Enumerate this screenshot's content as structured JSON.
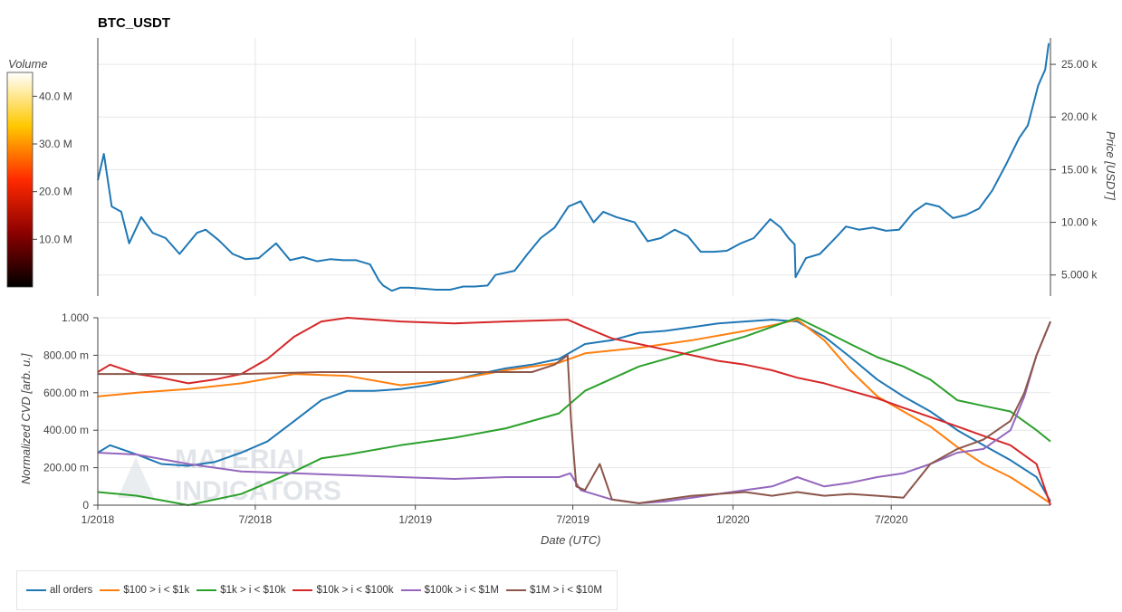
{
  "chart_data": [
    {
      "type": "line",
      "title": "BTC_USDT",
      "ylabel": "Price [USDT]",
      "ylim": [
        3000,
        27500
      ],
      "y_ticks": [
        5000,
        10000,
        15000,
        20000,
        25000
      ],
      "y_tick_labels": [
        "5.000 k",
        "10.00 k",
        "15.00 k",
        "20.00 k",
        "25.00 k"
      ],
      "x_ticks": [
        "2018-01",
        "2018-07",
        "2019-01",
        "2019-07",
        "2020-01",
        "2020-07"
      ],
      "colorbar": {
        "label": "Volume",
        "tick_labels": [
          "10.0 M",
          "20.0 M",
          "30.0 M",
          "40.0 M"
        ],
        "ticks": [
          10000000,
          20000000,
          30000000,
          40000000
        ],
        "range": [
          0,
          45000000
        ]
      },
      "grid": true,
      "series": [
        {
          "color": "#1f77b4",
          "x": [
            "2018-01-01",
            "2018-01-08",
            "2018-01-17",
            "2018-01-28",
            "2018-02-06",
            "2018-02-20",
            "2018-03-05",
            "2018-03-20",
            "2018-04-05",
            "2018-04-25",
            "2018-05-05",
            "2018-05-20",
            "2018-06-05",
            "2018-06-20",
            "2018-07-05",
            "2018-07-25",
            "2018-08-10",
            "2018-08-25",
            "2018-09-10",
            "2018-09-25",
            "2018-10-10",
            "2018-10-25",
            "2018-11-10",
            "2018-11-20",
            "2018-11-25",
            "2018-12-05",
            "2018-12-15",
            "2018-12-25",
            "2019-01-10",
            "2019-01-25",
            "2019-02-10",
            "2019-02-25",
            "2019-03-10",
            "2019-03-25",
            "2019-04-03",
            "2019-04-25",
            "2019-05-10",
            "2019-05-25",
            "2019-06-10",
            "2019-06-26",
            "2019-07-10",
            "2019-07-25",
            "2019-08-05",
            "2019-08-20",
            "2019-09-10",
            "2019-09-25",
            "2019-10-10",
            "2019-10-26",
            "2019-11-10",
            "2019-11-25",
            "2019-12-10",
            "2019-12-25",
            "2020-01-10",
            "2020-01-25",
            "2020-02-13",
            "2020-02-25",
            "2020-03-05",
            "2020-03-12",
            "2020-03-13",
            "2020-03-25",
            "2020-04-10",
            "2020-04-30",
            "2020-05-10",
            "2020-05-25",
            "2020-06-10",
            "2020-06-25",
            "2020-07-10",
            "2020-07-27",
            "2020-08-10",
            "2020-08-25",
            "2020-09-10",
            "2020-09-25",
            "2020-10-10",
            "2020-10-25",
            "2020-11-10",
            "2020-11-25",
            "2020-12-05",
            "2020-12-17",
            "2020-12-25",
            "2020-12-29"
          ],
          "y": [
            14000,
            16500,
            11500,
            11000,
            8000,
            10500,
            9000,
            8500,
            7000,
            9000,
            9300,
            8300,
            7000,
            6500,
            6600,
            8000,
            6400,
            6700,
            6300,
            6500,
            6400,
            6400,
            6000,
            4500,
            4000,
            3500,
            3800,
            3800,
            3700,
            3600,
            3600,
            3900,
            3900,
            4000,
            5000,
            5400,
            7000,
            8500,
            9500,
            11500,
            12000,
            10000,
            11000,
            10500,
            10000,
            8200,
            8500,
            9300,
            8700,
            7200,
            7200,
            7300,
            8000,
            8500,
            10300,
            9500,
            8500,
            7900,
            4800,
            6600,
            7000,
            8700,
            9600,
            9300,
            9500,
            9200,
            9300,
            11000,
            11800,
            11500,
            10400,
            10700,
            11300,
            13000,
            15500,
            18000,
            19200,
            23000,
            24500,
            27000
          ]
        }
      ]
    },
    {
      "type": "line",
      "xlabel": "Date (UTC)",
      "ylabel": "Normalized CVD [arb. u.]",
      "ylim": [
        0,
        1
      ],
      "y_ticks": [
        0,
        0.2,
        0.4,
        0.6,
        0.8,
        1.0
      ],
      "y_tick_labels": [
        "0",
        "200.00 m",
        "400.00 m",
        "600.00 m",
        "800.00 m",
        "1.000"
      ],
      "x_ticks": [
        "2018-01",
        "2018-07",
        "2019-01",
        "2019-07",
        "2020-01",
        "2020-07"
      ],
      "x_tick_labels": [
        "1/2018",
        "7/2018",
        "1/2019",
        "7/2019",
        "1/2020",
        "7/2020"
      ],
      "grid": true,
      "series": [
        {
          "name": "all orders",
          "color": "#1f77b4",
          "x": [
            "2018-01-01",
            "2018-01-15",
            "2018-02-15",
            "2018-03-15",
            "2018-04-15",
            "2018-05-15",
            "2018-06-15",
            "2018-07-15",
            "2018-08-15",
            "2018-09-15",
            "2018-10-15",
            "2018-11-15",
            "2018-12-15",
            "2019-01-15",
            "2019-02-15",
            "2019-03-15",
            "2019-04-15",
            "2019-05-15",
            "2019-06-15",
            "2019-06-30",
            "2019-07-15",
            "2019-08-15",
            "2019-09-15",
            "2019-10-15",
            "2019-11-15",
            "2019-12-15",
            "2020-01-15",
            "2020-02-15",
            "2020-03-15",
            "2020-04-15",
            "2020-05-15",
            "2020-06-15",
            "2020-07-15",
            "2020-08-15",
            "2020-09-15",
            "2020-10-15",
            "2020-11-15",
            "2020-12-15",
            "2020-12-31"
          ],
          "y": [
            0.28,
            0.32,
            0.27,
            0.22,
            0.21,
            0.23,
            0.28,
            0.34,
            0.45,
            0.56,
            0.61,
            0.61,
            0.62,
            0.64,
            0.67,
            0.7,
            0.73,
            0.75,
            0.78,
            0.82,
            0.86,
            0.88,
            0.92,
            0.93,
            0.95,
            0.97,
            0.98,
            0.99,
            0.98,
            0.9,
            0.79,
            0.67,
            0.58,
            0.5,
            0.4,
            0.32,
            0.24,
            0.15,
            0.02
          ]
        },
        {
          "name": "$100 > i < $1k",
          "color": "#ff7f0e",
          "x": [
            "2018-01-01",
            "2018-02-15",
            "2018-04-15",
            "2018-06-15",
            "2018-08-15",
            "2018-10-15",
            "2018-12-15",
            "2019-02-15",
            "2019-04-15",
            "2019-06-15",
            "2019-07-15",
            "2019-09-15",
            "2019-11-15",
            "2020-01-15",
            "2020-02-15",
            "2020-03-15",
            "2020-04-15",
            "2020-05-15",
            "2020-06-15",
            "2020-07-15",
            "2020-08-15",
            "2020-09-15",
            "2020-10-15",
            "2020-11-15",
            "2020-12-15",
            "2020-12-31"
          ],
          "y": [
            0.58,
            0.6,
            0.62,
            0.65,
            0.7,
            0.69,
            0.64,
            0.67,
            0.72,
            0.76,
            0.81,
            0.84,
            0.88,
            0.93,
            0.96,
            0.99,
            0.88,
            0.72,
            0.58,
            0.5,
            0.42,
            0.31,
            0.22,
            0.15,
            0.06,
            0.01
          ]
        },
        {
          "name": "$1k > i < $10k",
          "color": "#2ca02c",
          "x": [
            "2018-01-01",
            "2018-02-15",
            "2018-04-15",
            "2018-06-15",
            "2018-08-15",
            "2018-09-15",
            "2018-10-15",
            "2018-12-15",
            "2019-02-15",
            "2019-04-15",
            "2019-06-15",
            "2019-07-15",
            "2019-09-15",
            "2019-11-15",
            "2020-01-15",
            "2020-03-15",
            "2020-04-15",
            "2020-05-15",
            "2020-06-15",
            "2020-07-15",
            "2020-08-15",
            "2020-09-15",
            "2020-10-15",
            "2020-11-15",
            "2020-12-15",
            "2020-12-31"
          ],
          "y": [
            0.07,
            0.05,
            0.0,
            0.06,
            0.18,
            0.25,
            0.27,
            0.32,
            0.36,
            0.41,
            0.49,
            0.61,
            0.74,
            0.82,
            0.9,
            1.0,
            0.93,
            0.86,
            0.79,
            0.74,
            0.67,
            0.56,
            0.53,
            0.5,
            0.4,
            0.34
          ]
        },
        {
          "name": "$10k > i < $100k",
          "color": "#d62728",
          "x": [
            "2018-01-01",
            "2018-01-15",
            "2018-02-15",
            "2018-03-15",
            "2018-04-15",
            "2018-05-15",
            "2018-06-15",
            "2018-07-15",
            "2018-08-15",
            "2018-09-15",
            "2018-10-15",
            "2018-11-15",
            "2018-12-15",
            "2019-02-15",
            "2019-04-15",
            "2019-06-25",
            "2019-07-15",
            "2019-08-15",
            "2019-09-15",
            "2019-10-15",
            "2019-11-15",
            "2019-12-15",
            "2020-01-15",
            "2020-02-15",
            "2020-03-15",
            "2020-04-15",
            "2020-05-15",
            "2020-06-15",
            "2020-07-15",
            "2020-08-15",
            "2020-09-15",
            "2020-10-15",
            "2020-11-15",
            "2020-12-15",
            "2020-12-31"
          ],
          "y": [
            0.71,
            0.75,
            0.7,
            0.68,
            0.65,
            0.67,
            0.7,
            0.78,
            0.9,
            0.98,
            1.0,
            0.99,
            0.98,
            0.97,
            0.98,
            0.99,
            0.95,
            0.89,
            0.86,
            0.83,
            0.8,
            0.77,
            0.75,
            0.72,
            0.68,
            0.65,
            0.61,
            0.57,
            0.52,
            0.47,
            0.42,
            0.37,
            0.32,
            0.22,
            0.0
          ]
        },
        {
          "name": "$100k > i < $1M",
          "color": "#9467bd",
          "x": [
            "2018-01-01",
            "2018-02-15",
            "2018-04-15",
            "2018-06-15",
            "2018-08-15",
            "2018-10-15",
            "2018-12-15",
            "2019-02-15",
            "2019-04-15",
            "2019-06-15",
            "2019-06-28",
            "2019-07-10",
            "2019-08-15",
            "2019-09-15",
            "2019-10-15",
            "2019-11-15",
            "2019-12-15",
            "2020-01-15",
            "2020-02-15",
            "2020-03-15",
            "2020-04-15",
            "2020-05-15",
            "2020-06-15",
            "2020-07-15",
            "2020-08-15",
            "2020-09-15",
            "2020-10-15",
            "2020-11-15",
            "2020-12-01",
            "2020-12-15",
            "2020-12-31"
          ],
          "y": [
            0.28,
            0.27,
            0.22,
            0.18,
            0.17,
            0.16,
            0.15,
            0.14,
            0.15,
            0.15,
            0.17,
            0.08,
            0.03,
            0.01,
            0.02,
            0.04,
            0.06,
            0.08,
            0.1,
            0.15,
            0.1,
            0.12,
            0.15,
            0.17,
            0.22,
            0.28,
            0.3,
            0.4,
            0.58,
            0.8,
            0.98
          ]
        },
        {
          "name": "$1M > i < $10M",
          "color": "#8c564b",
          "x": [
            "2018-01-01",
            "2018-03-15",
            "2018-06-15",
            "2018-09-15",
            "2018-12-15",
            "2019-03-15",
            "2019-05-15",
            "2019-06-10",
            "2019-06-25",
            "2019-06-29",
            "2019-07-05",
            "2019-07-15",
            "2019-08-01",
            "2019-08-15",
            "2019-09-15",
            "2019-10-15",
            "2019-11-15",
            "2019-12-15",
            "2020-01-15",
            "2020-02-15",
            "2020-03-15",
            "2020-04-15",
            "2020-05-15",
            "2020-06-15",
            "2020-07-15",
            "2020-08-15",
            "2020-09-15",
            "2020-10-15",
            "2020-11-15",
            "2020-12-01",
            "2020-12-15",
            "2020-12-31"
          ],
          "y": [
            0.7,
            0.7,
            0.7,
            0.71,
            0.71,
            0.71,
            0.71,
            0.75,
            0.8,
            0.45,
            0.1,
            0.08,
            0.22,
            0.03,
            0.01,
            0.03,
            0.05,
            0.06,
            0.07,
            0.05,
            0.07,
            0.05,
            0.06,
            0.05,
            0.04,
            0.22,
            0.3,
            0.35,
            0.45,
            0.6,
            0.8,
            0.98
          ]
        }
      ]
    }
  ],
  "chart_labels": {
    "title": "BTC_USDT",
    "colorbar_label": "Volume",
    "price_ylabel": "Price [USDT]",
    "cvd_ylabel": "Normalized CVD [arb. u.]",
    "xlabel": "Date (UTC)"
  },
  "watermark": [
    "MATERIAL",
    "INDICATORS"
  ],
  "legend": [
    {
      "label": "all orders",
      "color": "#1f77b4"
    },
    {
      "label": "$100 > i < $1k",
      "color": "#ff7f0e"
    },
    {
      "label": "$1k > i < $10k",
      "color": "#2ca02c"
    },
    {
      "label": "$10k > i < $100k",
      "color": "#d62728"
    },
    {
      "label": "$100k > i < $1M",
      "color": "#9467bd"
    },
    {
      "label": "$1M > i < $10M",
      "color": "#8c564b"
    }
  ]
}
